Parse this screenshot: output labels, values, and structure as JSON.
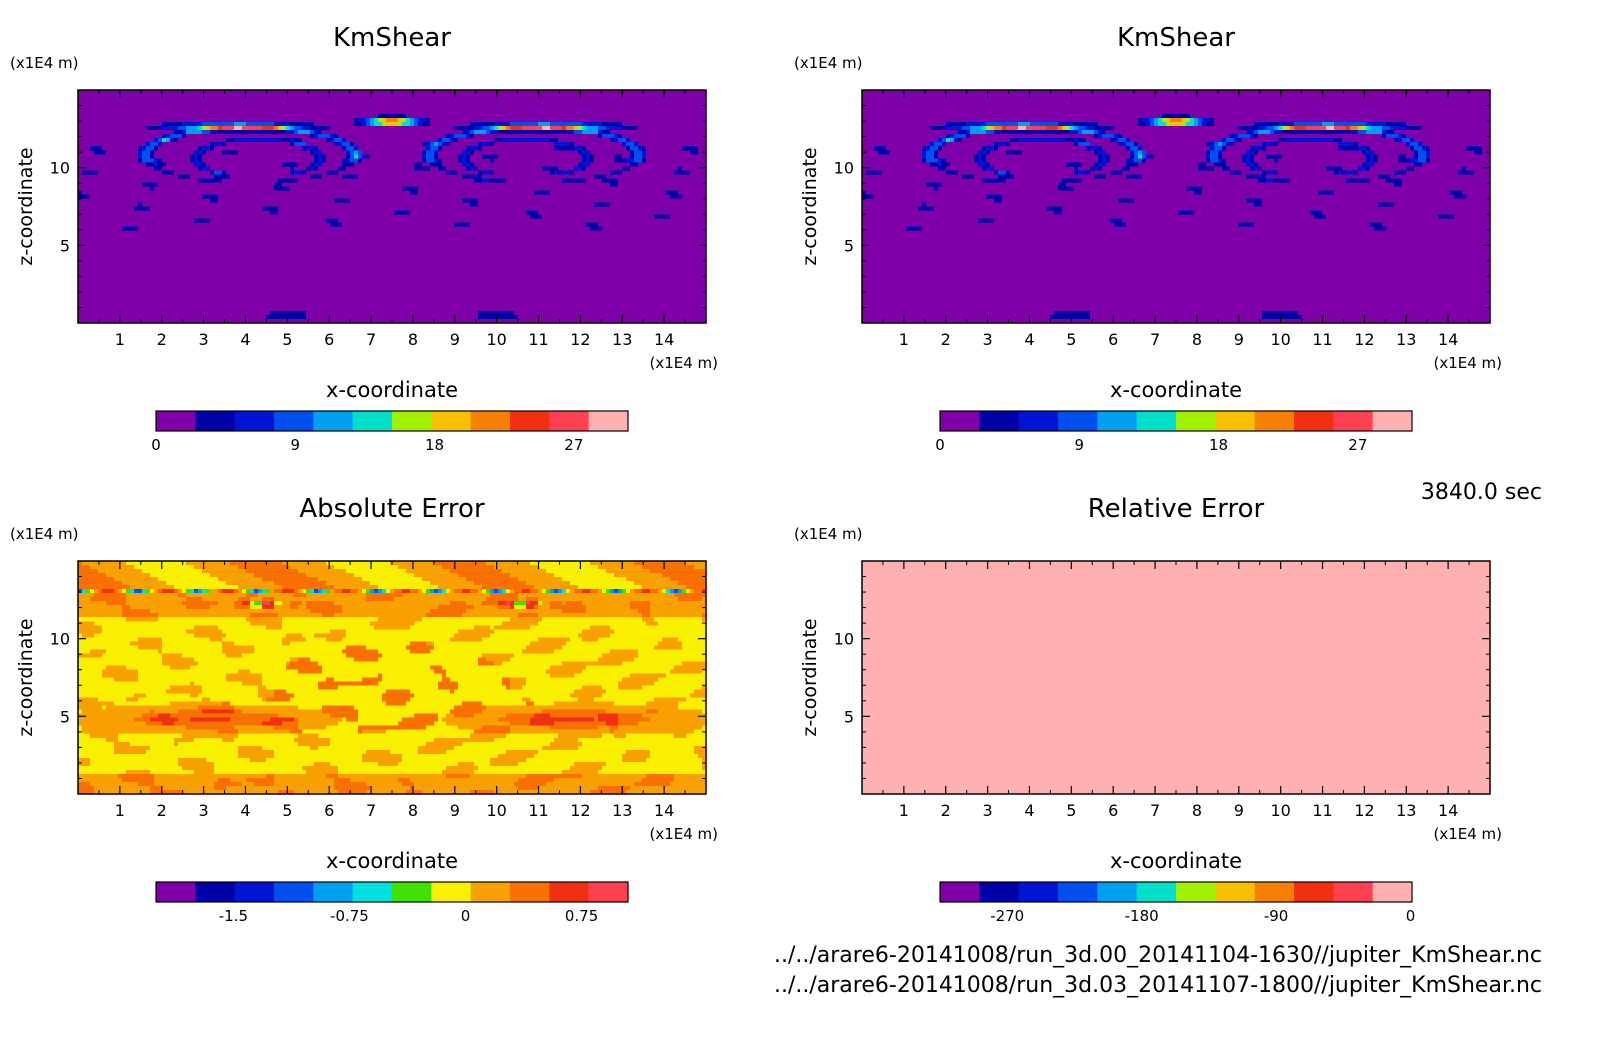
{
  "chart_data": [
    {
      "type": "heatmap",
      "title": "KmShear",
      "xlabel": "x-coordinate",
      "ylabel": "z-coordinate",
      "x_unit": "(x1E4 m)",
      "y_unit": "(x1E4 m)",
      "x_ticks": [
        1,
        2,
        3,
        4,
        5,
        6,
        7,
        8,
        9,
        10,
        11,
        12,
        13,
        14
      ],
      "y_ticks": [
        5,
        10
      ],
      "xlim": [
        0,
        15
      ],
      "ylim": [
        0,
        15
      ],
      "colorbar": {
        "ticks": [
          "0",
          "9",
          "18",
          "27"
        ],
        "tick_values": [
          0,
          9,
          18,
          27
        ],
        "range": [
          0,
          30.5
        ],
        "colors": [
          "#7f00a8",
          "#0000a8",
          "#0014d8",
          "#0050f0",
          "#00a0f0",
          "#00e0c8",
          "#a0f000",
          "#f8c000",
          "#f88000",
          "#f03010",
          "#ff4050",
          "#ffb0b0"
        ]
      },
      "field": "kmshear"
    },
    {
      "type": "heatmap",
      "title": "KmShear",
      "xlabel": "x-coordinate",
      "ylabel": "z-coordinate",
      "x_unit": "(x1E4 m)",
      "y_unit": "(x1E4 m)",
      "x_ticks": [
        1,
        2,
        3,
        4,
        5,
        6,
        7,
        8,
        9,
        10,
        11,
        12,
        13,
        14
      ],
      "y_ticks": [
        5,
        10
      ],
      "xlim": [
        0,
        15
      ],
      "ylim": [
        0,
        15
      ],
      "colorbar": {
        "ticks": [
          "0",
          "9",
          "18",
          "27"
        ],
        "tick_values": [
          0,
          9,
          18,
          27
        ],
        "range": [
          0,
          30.5
        ],
        "colors": [
          "#7f00a8",
          "#0000a8",
          "#0014d8",
          "#0050f0",
          "#00a0f0",
          "#00e0c8",
          "#a0f000",
          "#f8c000",
          "#f88000",
          "#f03010",
          "#ff4050",
          "#ffb0b0"
        ]
      },
      "field": "kmshear"
    },
    {
      "type": "heatmap",
      "title": "Absolute Error",
      "xlabel": "x-coordinate",
      "ylabel": "z-coordinate",
      "x_unit": "(x1E4 m)",
      "y_unit": "(x1E4 m)",
      "x_ticks": [
        1,
        2,
        3,
        4,
        5,
        6,
        7,
        8,
        9,
        10,
        11,
        12,
        13,
        14
      ],
      "y_ticks": [
        5,
        10
      ],
      "xlim": [
        0,
        15
      ],
      "ylim": [
        0,
        15
      ],
      "colorbar": {
        "ticks": [
          "-1.5",
          "-0.75",
          "0",
          "0.75"
        ],
        "tick_values": [
          -1.5,
          -0.75,
          0,
          0.75
        ],
        "range": [
          -2.0,
          1.05
        ],
        "colors": [
          "#7f00a8",
          "#0000a8",
          "#0014d8",
          "#0050f0",
          "#00a0f0",
          "#00e0e0",
          "#40e000",
          "#f8f000",
          "#f8a000",
          "#f87000",
          "#f03010",
          "#ff4050"
        ]
      },
      "field": "abs"
    },
    {
      "type": "heatmap",
      "title": "Relative Error",
      "xlabel": "x-coordinate",
      "ylabel": "z-coordinate",
      "x_unit": "(x1E4 m)",
      "y_unit": "(x1E4 m)",
      "x_ticks": [
        1,
        2,
        3,
        4,
        5,
        6,
        7,
        8,
        9,
        10,
        11,
        12,
        13,
        14
      ],
      "y_ticks": [
        5,
        10
      ],
      "xlim": [
        0,
        15
      ],
      "ylim": [
        0,
        15
      ],
      "colorbar": {
        "ticks": [
          "-270",
          "-180",
          "-90",
          "0"
        ],
        "tick_values": [
          -270,
          -180,
          -90,
          0
        ],
        "range": [
          -315,
          1
        ],
        "colors": [
          "#7f00a8",
          "#0000a8",
          "#0014d8",
          "#0050f0",
          "#00a0f0",
          "#00e0c8",
          "#a0f000",
          "#f8c000",
          "#f88000",
          "#f03010",
          "#ff4050",
          "#ffb0b0"
        ]
      },
      "field": "rel"
    }
  ],
  "time_label": "3840.0 sec",
  "footer": {
    "line1": "../../arare6-20141008/run_3d.00_20141104-1630//jupiter_KmShear.nc",
    "line2": "../../arare6-20141008/run_3d.03_20141107-1800//jupiter_KmShear.nc"
  }
}
